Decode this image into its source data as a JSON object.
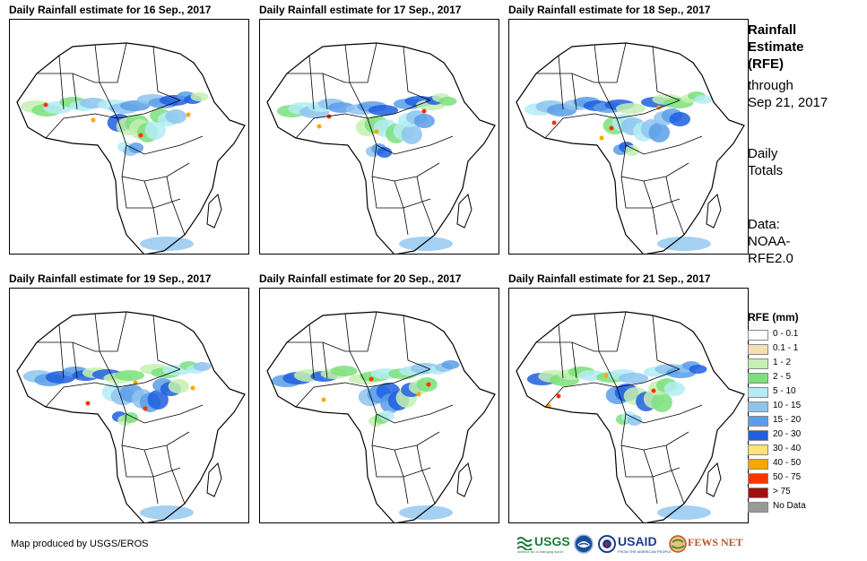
{
  "panels": [
    {
      "title": "Daily Rainfall estimate for 16 Sep., 2017"
    },
    {
      "title": "Daily Rainfall estimate for 17 Sep., 2017"
    },
    {
      "title": "Daily Rainfall estimate for 18 Sep., 2017"
    },
    {
      "title": "Daily Rainfall estimate for 19 Sep., 2017"
    },
    {
      "title": "Daily Rainfall estimate for 20 Sep., 2017"
    },
    {
      "title": "Daily Rainfall estimate for 21 Sep., 2017"
    }
  ],
  "side": {
    "title_line1": "Rainfall",
    "title_line2": "Estimate",
    "title_line3": "(RFE)",
    "through": "through",
    "date": "Sep 21, 2017",
    "totals_line1": "Daily",
    "totals_line2": "Totals",
    "data_line1": "Data:",
    "data_line2": "NOAA-",
    "data_line3": "RFE2.0"
  },
  "legend": {
    "title": "RFE (mm)",
    "items": [
      {
        "label": "0 - 0.1",
        "color": "#ffffff"
      },
      {
        "label": "0.1 - 1",
        "color": "#f5deb3"
      },
      {
        "label": "1 - 2",
        "color": "#c6f0b0"
      },
      {
        "label": "2 - 5",
        "color": "#7be07b"
      },
      {
        "label": "5 - 10",
        "color": "#b4ecf5"
      },
      {
        "label": "10 - 15",
        "color": "#8dc4ef"
      },
      {
        "label": "15 - 20",
        "color": "#5a9ee8"
      },
      {
        "label": "20 - 30",
        "color": "#1f5fe0"
      },
      {
        "label": "30 - 40",
        "color": "#ffe27a"
      },
      {
        "label": "40 - 50",
        "color": "#ffa500"
      },
      {
        "label": "50 - 75",
        "color": "#ff3300"
      },
      {
        "label": "> 75",
        "color": "#a01010"
      },
      {
        "label": "No Data",
        "color": "#999999"
      }
    ]
  },
  "footer": {
    "text": "Map produced by USGS/EROS"
  },
  "logos": {
    "usgs": "USGS",
    "usgs_tagline": "science for a changing world",
    "usaid": "USAID",
    "usaid_tagline": "FROM THE AMERICAN PEOPLE",
    "fewsnet": "FEWS NET"
  }
}
